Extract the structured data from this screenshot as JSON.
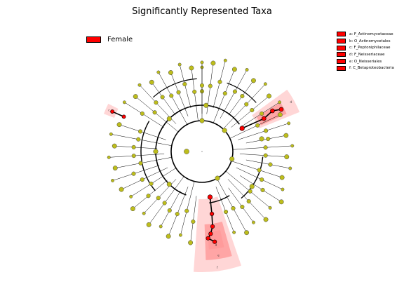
{
  "title": "Significantly Represented Taxa",
  "group_legend": {
    "label": "Female",
    "color": "#ff0000"
  },
  "clade_legend": [
    {
      "letter": "a",
      "label": "a: F_Actinomycetaceae"
    },
    {
      "letter": "b",
      "label": "b: O_Actinomycetales"
    },
    {
      "letter": "c",
      "label": "c: F_Peptoniphilaceae"
    },
    {
      "letter": "d",
      "label": "d: F_Neisseriaceae"
    },
    {
      "letter": "e",
      "label": "e: O_Neisseriales"
    },
    {
      "letter": "f",
      "label": "f: C_Betaproteobacteria"
    }
  ],
  "colors": {
    "node_default": "#bdbd1b",
    "node_highlight": "#ff0000",
    "shade_light": "#ffcccc",
    "shade_dark": "#ff9999"
  }
}
